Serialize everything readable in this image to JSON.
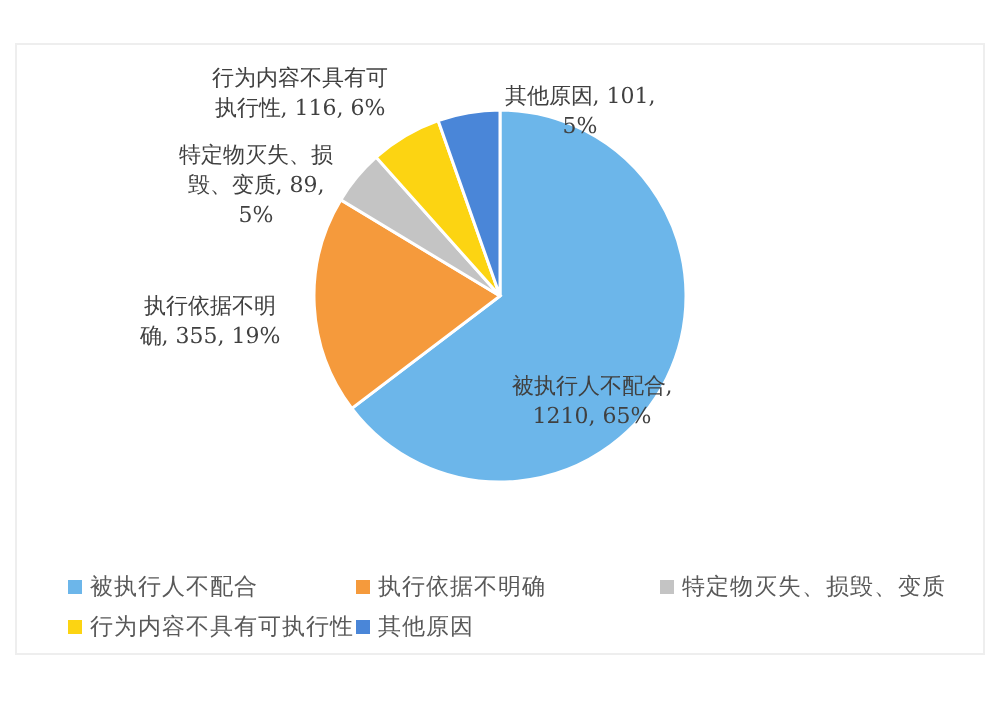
{
  "chart_data": {
    "type": "pie",
    "categories": [
      "被执行人不配合",
      "执行依据不明确",
      "特定物灭失、损毁、变质",
      "行为内容不具有可执行性",
      "其他原因"
    ],
    "values": [
      1210,
      355,
      89,
      116,
      101
    ],
    "colors": [
      "#6cb6ea",
      "#f59a3c",
      "#c4c4c4",
      "#fcd412",
      "#4a86d8"
    ],
    "value_labels": [
      "被执行人不配合, 1210, 65%",
      "执行依据不明确, 355, 19%",
      "特定物灭失、损毁、变质, 89, 5%",
      "行为内容不具有可执行性, 116, 6%",
      "其他原因, 101, 5%"
    ],
    "legend": "bottom"
  }
}
